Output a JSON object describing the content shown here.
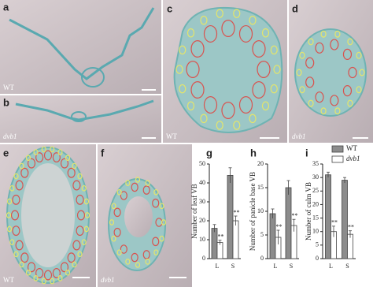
{
  "panels": [
    {
      "letter": "a",
      "label": "WT"
    },
    {
      "letter": "b",
      "label": "dvb1"
    },
    {
      "letter": "c",
      "label": "WT"
    },
    {
      "letter": "d",
      "label": "dvb1"
    },
    {
      "letter": "e",
      "label": "WT"
    },
    {
      "letter": "f",
      "label": "dvb1"
    }
  ],
  "chart_data": [
    {
      "type": "bar",
      "letter": "g",
      "y_label": "Number of leaf VB",
      "categories": [
        "L",
        "S"
      ],
      "series": [
        {
          "name": "WT",
          "color": "#8c8c8c",
          "values": [
            16,
            44
          ],
          "errors": [
            2,
            4
          ]
        },
        {
          "name": "dvb1",
          "color": "#ffffff",
          "values": [
            8.5,
            20
          ],
          "errors": [
            1.2,
            2.5
          ],
          "annotations": [
            "**",
            "**"
          ]
        }
      ],
      "ylim": [
        0,
        50
      ],
      "yticks": [
        0,
        10,
        20,
        30,
        40,
        50
      ],
      "legend": false
    },
    {
      "type": "bar",
      "letter": "h",
      "y_label": "Number of panicle base VB",
      "categories": [
        "L",
        "S"
      ],
      "series": [
        {
          "name": "WT",
          "color": "#8c8c8c",
          "values": [
            9.5,
            15
          ],
          "errors": [
            1,
            1.5
          ]
        },
        {
          "name": "dvb1",
          "color": "#ffffff",
          "values": [
            4.5,
            7
          ],
          "errors": [
            1.5,
            1.3
          ],
          "annotations": [
            "**",
            "**"
          ]
        }
      ],
      "ylim": [
        0,
        20
      ],
      "yticks": [
        0,
        5,
        10,
        15,
        20
      ],
      "legend": false
    },
    {
      "type": "bar",
      "letter": "i",
      "y_label": "Number of culm VB",
      "categories": [
        "L",
        "S"
      ],
      "series": [
        {
          "name": "WT",
          "color": "#8c8c8c",
          "values": [
            31,
            29
          ],
          "errors": [
            1,
            1
          ]
        },
        {
          "name": "dvb1",
          "color": "#ffffff",
          "values": [
            10,
            9
          ],
          "errors": [
            2,
            1.3
          ],
          "annotations": [
            "**",
            "**"
          ]
        }
      ],
      "ylim": [
        0,
        35
      ],
      "yticks": [
        0,
        5,
        10,
        15,
        20,
        25,
        30,
        35
      ],
      "legend": true
    }
  ]
}
